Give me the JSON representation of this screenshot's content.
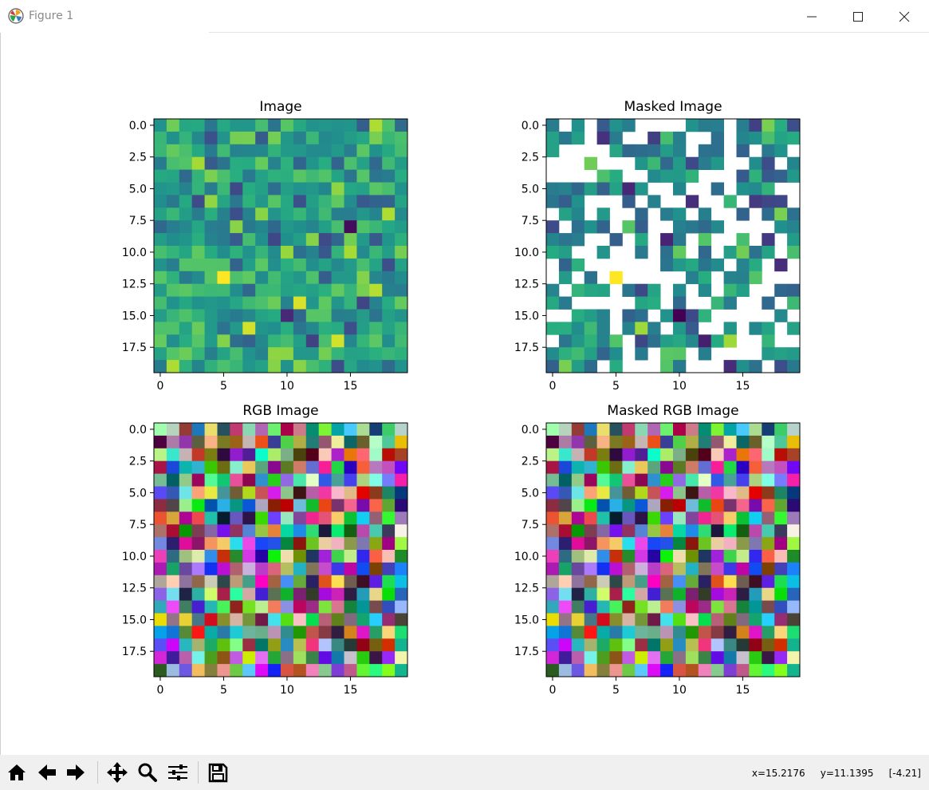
{
  "window": {
    "title": "Figure 1",
    "icon": "matplotlib-logo-icon",
    "controls": [
      "minimize-icon",
      "maximize-icon",
      "close-icon"
    ]
  },
  "figure": {
    "panels": [
      {
        "title": "Image",
        "kind": "grayscale-viridis",
        "masked": false,
        "xticks": [
          "0",
          "5",
          "10",
          "15"
        ],
        "yticks": [
          "0.0",
          "2.5",
          "5.0",
          "7.5",
          "10.0",
          "12.5",
          "15.0",
          "17.5"
        ]
      },
      {
        "title": "Masked Image",
        "kind": "grayscale-viridis",
        "masked": true,
        "xticks": [
          "0",
          "5",
          "10",
          "15"
        ],
        "yticks": [
          "0.0",
          "2.5",
          "5.0",
          "7.5",
          "10.0",
          "12.5",
          "15.0",
          "17.5"
        ]
      },
      {
        "title": "RGB Image",
        "kind": "rgb",
        "masked": false,
        "xticks": [
          "0",
          "5",
          "10",
          "15"
        ],
        "yticks": [
          "0.0",
          "2.5",
          "5.0",
          "7.5",
          "10.0",
          "12.5",
          "15.0",
          "17.5"
        ]
      },
      {
        "title": "Masked RGB Image",
        "kind": "rgb",
        "masked": true,
        "xticks": [
          "0",
          "5",
          "10",
          "15"
        ],
        "yticks": [
          "0.0",
          "2.5",
          "5.0",
          "7.5",
          "10.0",
          "12.5",
          "15.0",
          "17.5"
        ]
      }
    ],
    "grid_size": 20,
    "extent_x": [
      -0.5,
      19.5
    ],
    "extent_y": [
      19.5,
      -0.5
    ],
    "tick_values_x": [
      0,
      5,
      10,
      15
    ],
    "tick_values_y": [
      0,
      2.5,
      5,
      7.5,
      10,
      12.5,
      15,
      17.5
    ],
    "colormap": "viridis"
  },
  "toolbar": {
    "buttons": [
      "home-icon",
      "back-icon",
      "forward-icon",
      "pan-icon",
      "zoom-icon",
      "configure-subplots-icon",
      "save-icon"
    ]
  },
  "status": {
    "x": "x=15.2176",
    "y": "y=11.1395",
    "value": "[-4.21]"
  }
}
